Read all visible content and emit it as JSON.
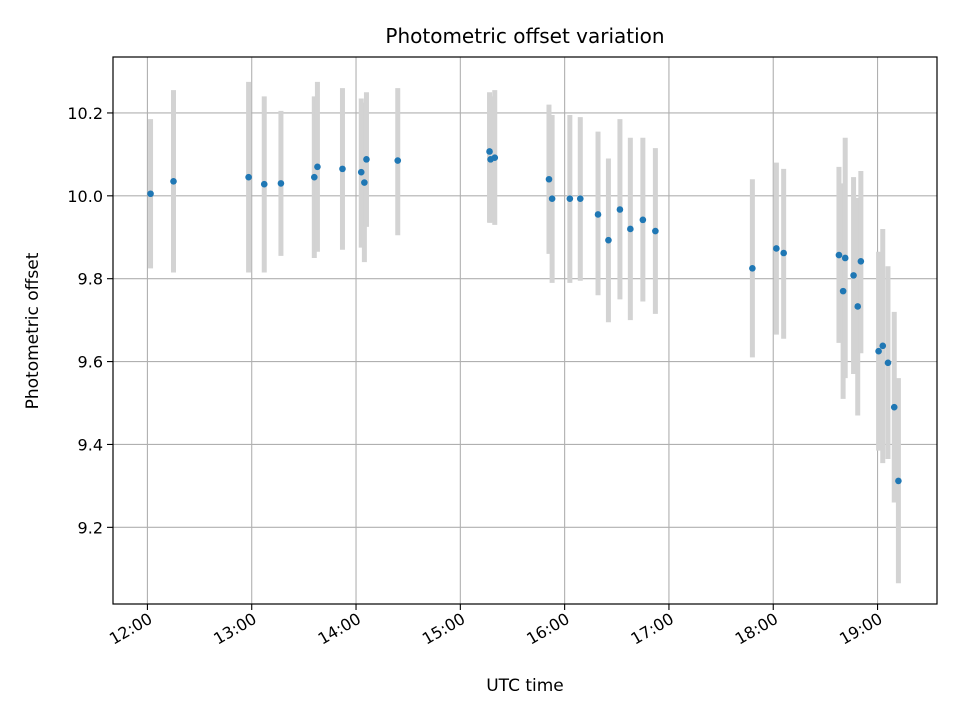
{
  "chart_data": {
    "type": "scatter",
    "title": "Photometric offset variation",
    "xlabel": "UTC time",
    "ylabel": "Photometric offset",
    "grid": true,
    "x_unit": "hours (UTC)",
    "xlim": [
      11.67,
      19.57
    ],
    "ylim": [
      9.015,
      10.335
    ],
    "x_ticks": [
      {
        "value": 12,
        "label": "12:00"
      },
      {
        "value": 13,
        "label": "13:00"
      },
      {
        "value": 14,
        "label": "14:00"
      },
      {
        "value": 15,
        "label": "15:00"
      },
      {
        "value": 16,
        "label": "16:00"
      },
      {
        "value": 17,
        "label": "17:00"
      },
      {
        "value": 18,
        "label": "18:00"
      },
      {
        "value": 19,
        "label": "19:00"
      }
    ],
    "y_ticks": [
      {
        "value": 9.2,
        "label": "9.2"
      },
      {
        "value": 9.4,
        "label": "9.4"
      },
      {
        "value": 9.6,
        "label": "9.6"
      },
      {
        "value": 9.8,
        "label": "9.8"
      },
      {
        "value": 10.0,
        "label": "10.0"
      },
      {
        "value": 10.2,
        "label": "10.2"
      }
    ],
    "marker_color": "#1f77b4",
    "errorbar_color": "#d3d3d3",
    "points": [
      {
        "x": 12.03,
        "y": 10.005,
        "ylo": 9.825,
        "yhi": 10.185
      },
      {
        "x": 12.25,
        "y": 10.035,
        "ylo": 9.815,
        "yhi": 10.255
      },
      {
        "x": 12.97,
        "y": 10.045,
        "ylo": 9.815,
        "yhi": 10.275
      },
      {
        "x": 13.12,
        "y": 10.028,
        "ylo": 9.815,
        "yhi": 10.24
      },
      {
        "x": 13.28,
        "y": 10.03,
        "ylo": 9.855,
        "yhi": 10.205
      },
      {
        "x": 13.6,
        "y": 10.045,
        "ylo": 9.85,
        "yhi": 10.24
      },
      {
        "x": 13.63,
        "y": 10.07,
        "ylo": 9.865,
        "yhi": 10.275
      },
      {
        "x": 13.87,
        "y": 10.065,
        "ylo": 9.87,
        "yhi": 10.26
      },
      {
        "x": 14.05,
        "y": 10.057,
        "ylo": 9.875,
        "yhi": 10.235
      },
      {
        "x": 14.08,
        "y": 10.032,
        "ylo": 9.84,
        "yhi": 10.225
      },
      {
        "x": 14.1,
        "y": 10.088,
        "ylo": 9.925,
        "yhi": 10.25
      },
      {
        "x": 14.4,
        "y": 10.085,
        "ylo": 9.905,
        "yhi": 10.26
      },
      {
        "x": 15.28,
        "y": 10.107,
        "ylo": 9.935,
        "yhi": 10.25
      },
      {
        "x": 15.29,
        "y": 10.088,
        "ylo": 9.935,
        "yhi": 10.24
      },
      {
        "x": 15.33,
        "y": 10.092,
        "ylo": 9.93,
        "yhi": 10.255
      },
      {
        "x": 15.85,
        "y": 10.04,
        "ylo": 9.86,
        "yhi": 10.22
      },
      {
        "x": 15.88,
        "y": 9.993,
        "ylo": 9.79,
        "yhi": 10.195
      },
      {
        "x": 16.05,
        "y": 9.993,
        "ylo": 9.79,
        "yhi": 10.195
      },
      {
        "x": 16.15,
        "y": 9.993,
        "ylo": 9.795,
        "yhi": 10.19
      },
      {
        "x": 16.32,
        "y": 9.955,
        "ylo": 9.76,
        "yhi": 10.155
      },
      {
        "x": 16.42,
        "y": 9.893,
        "ylo": 9.695,
        "yhi": 10.09
      },
      {
        "x": 16.53,
        "y": 9.967,
        "ylo": 9.75,
        "yhi": 10.185
      },
      {
        "x": 16.63,
        "y": 9.92,
        "ylo": 9.7,
        "yhi": 10.14
      },
      {
        "x": 16.75,
        "y": 9.942,
        "ylo": 9.745,
        "yhi": 10.14
      },
      {
        "x": 16.87,
        "y": 9.915,
        "ylo": 9.715,
        "yhi": 10.115
      },
      {
        "x": 17.8,
        "y": 9.825,
        "ylo": 9.61,
        "yhi": 10.04
      },
      {
        "x": 18.03,
        "y": 9.873,
        "ylo": 9.665,
        "yhi": 10.08
      },
      {
        "x": 18.1,
        "y": 9.862,
        "ylo": 9.655,
        "yhi": 10.065
      },
      {
        "x": 18.63,
        "y": 9.857,
        "ylo": 9.645,
        "yhi": 10.07
      },
      {
        "x": 18.67,
        "y": 9.77,
        "ylo": 9.51,
        "yhi": 10.03
      },
      {
        "x": 18.69,
        "y": 9.85,
        "ylo": 9.56,
        "yhi": 10.14
      },
      {
        "x": 18.77,
        "y": 9.808,
        "ylo": 9.57,
        "yhi": 10.045
      },
      {
        "x": 18.81,
        "y": 9.733,
        "ylo": 9.47,
        "yhi": 9.995
      },
      {
        "x": 18.84,
        "y": 9.842,
        "ylo": 9.62,
        "yhi": 10.06
      },
      {
        "x": 19.01,
        "y": 9.625,
        "ylo": 9.385,
        "yhi": 9.865
      },
      {
        "x": 19.05,
        "y": 9.638,
        "ylo": 9.355,
        "yhi": 9.92
      },
      {
        "x": 19.1,
        "y": 9.597,
        "ylo": 9.365,
        "yhi": 9.83
      },
      {
        "x": 19.16,
        "y": 9.49,
        "ylo": 9.26,
        "yhi": 9.72
      },
      {
        "x": 19.2,
        "y": 9.312,
        "ylo": 9.065,
        "yhi": 9.56
      }
    ]
  }
}
